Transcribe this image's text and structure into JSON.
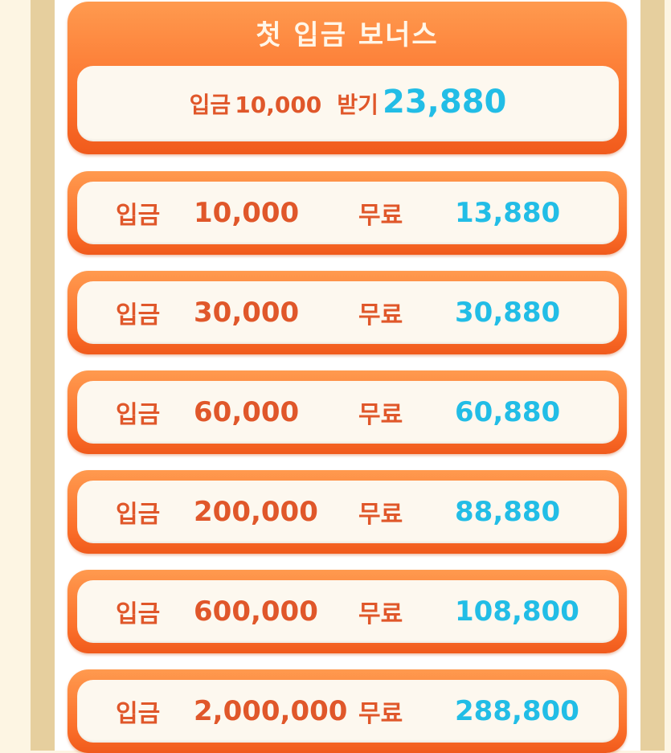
{
  "header": {
    "title": "첫 입금 보너스",
    "deposit_label": "입금",
    "deposit_amount": "10,000",
    "receive_label": "받기",
    "receive_amount": "23,880"
  },
  "rows": [
    {
      "deposit_label": "입금",
      "amount": "10,000",
      "free_label": "무료",
      "bonus": "13,880"
    },
    {
      "deposit_label": "입금",
      "amount": "30,000",
      "free_label": "무료",
      "bonus": "30,880"
    },
    {
      "deposit_label": "입금",
      "amount": "60,000",
      "free_label": "무료",
      "bonus": "60,880"
    },
    {
      "deposit_label": "입금",
      "amount": "200,000",
      "free_label": "무료",
      "bonus": "88,880"
    },
    {
      "deposit_label": "입금",
      "amount": "600,000",
      "free_label": "무료",
      "bonus": "108,800"
    },
    {
      "deposit_label": "입금",
      "amount": "2,000,000",
      "free_label": "무료",
      "bonus": "288,800"
    }
  ],
  "colors": {
    "accent_orange": "#fb6f2a",
    "text_orange": "#e0572a",
    "bonus_blue": "#22bde6",
    "frame_tan": "#e6cf9e"
  }
}
